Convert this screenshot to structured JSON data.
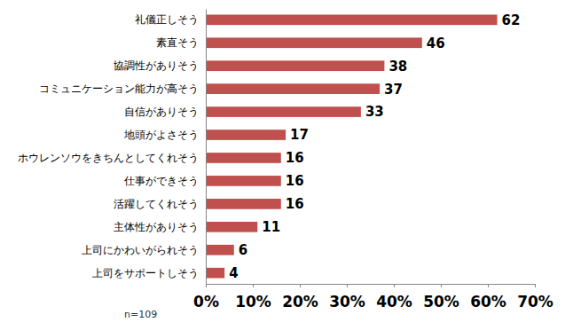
{
  "chart_data": {
    "type": "bar",
    "orientation": "horizontal",
    "categories": [
      "礼儀正しそう",
      "素直そう",
      "協調性がありそう",
      "コミュニケーション能力が高そう",
      "自信がありそう",
      "地頭がよさそう",
      "ホウレンソウをきちんとしてくれそう",
      "仕事ができそう",
      "活躍してくれそう",
      "主体性がありそう",
      "上司にかわいがられそう",
      "上司をサポートしそう"
    ],
    "values": [
      62,
      46,
      38,
      37,
      33,
      17,
      16,
      16,
      16,
      11,
      6,
      4
    ],
    "color": "#c0504d",
    "xlim": [
      0,
      70
    ],
    "xticks": [
      {
        "value": 0,
        "label": "0%"
      },
      {
        "value": 10,
        "label": "10%"
      },
      {
        "value": 20,
        "label": "20%"
      },
      {
        "value": 30,
        "label": "30%"
      },
      {
        "value": 40,
        "label": "40%"
      },
      {
        "value": 50,
        "label": "50%"
      },
      {
        "value": 60,
        "label": "60%"
      },
      {
        "value": 70,
        "label": "70%"
      }
    ],
    "grid": false,
    "data_labels": true,
    "annotation": "n=109"
  }
}
